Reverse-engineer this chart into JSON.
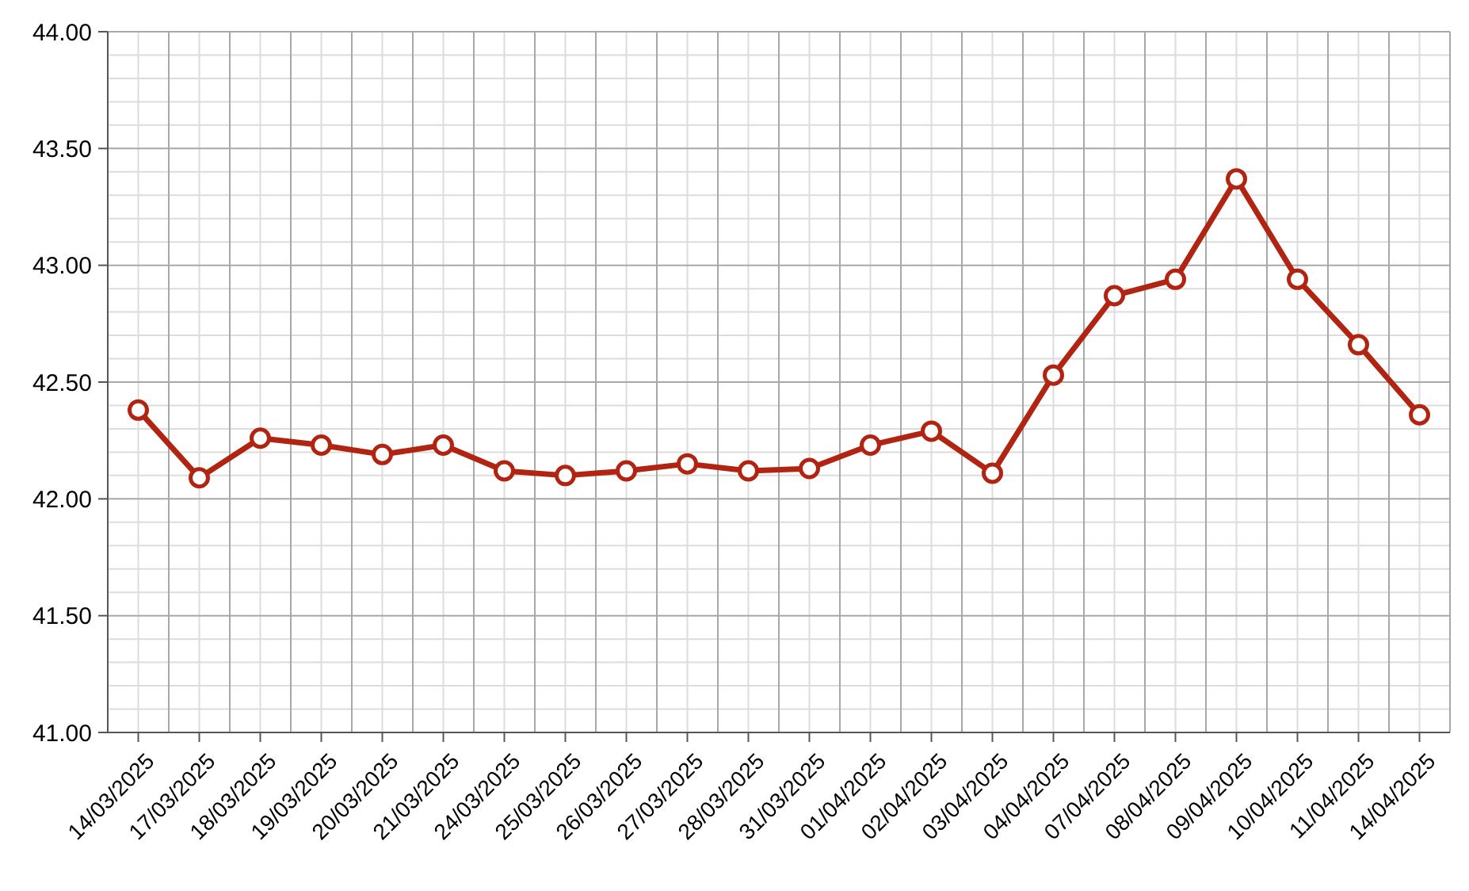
{
  "chart_data": {
    "type": "line",
    "categories": [
      "14/03/2025",
      "17/03/2025",
      "18/03/2025",
      "19/03/2025",
      "20/03/2025",
      "21/03/2025",
      "24/03/2025",
      "25/03/2025",
      "26/03/2025",
      "27/03/2025",
      "28/03/2025",
      "31/03/2025",
      "01/04/2025",
      "02/04/2025",
      "03/04/2025",
      "04/04/2025",
      "07/04/2025",
      "08/04/2025",
      "09/04/2025",
      "10/04/2025",
      "11/04/2025",
      "14/04/2025"
    ],
    "series": [
      {
        "color": "#b22412",
        "values": [
          42.38,
          42.09,
          42.26,
          42.23,
          42.19,
          42.23,
          42.12,
          42.1,
          42.12,
          42.15,
          42.12,
          42.13,
          42.23,
          42.29,
          42.11,
          42.53,
          42.87,
          42.94,
          43.37,
          42.94,
          42.66,
          42.36
        ]
      }
    ],
    "ylim": [
      41,
      44
    ],
    "yticks": [
      {
        "value": 41,
        "label": "41.00"
      },
      {
        "value": 41.5,
        "label": "41.50"
      },
      {
        "value": 42,
        "label": "42.00"
      },
      {
        "value": 42.5,
        "label": "42.50"
      },
      {
        "value": 43,
        "label": "43.00"
      },
      {
        "value": 43.5,
        "label": "43.50"
      },
      {
        "value": 44,
        "label": "44.00"
      }
    ],
    "grid": true,
    "marker": "circle",
    "line_style": "solid"
  }
}
